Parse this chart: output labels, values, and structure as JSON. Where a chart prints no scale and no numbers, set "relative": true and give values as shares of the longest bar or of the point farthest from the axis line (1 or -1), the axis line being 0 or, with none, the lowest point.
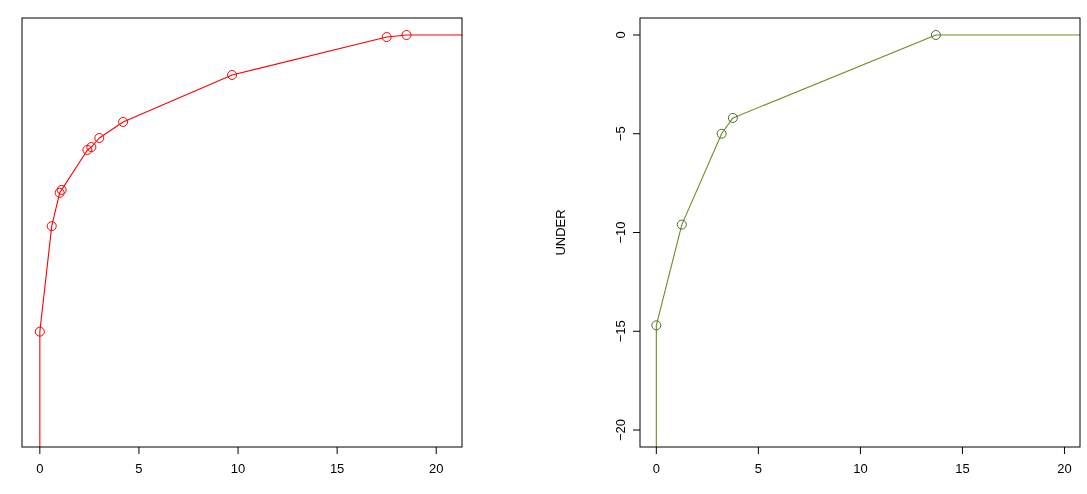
{
  "chart_data": [
    {
      "type": "line",
      "relative": true,
      "xlim": [
        -0.9,
        21.3
      ],
      "xticks": [
        0,
        5,
        10,
        15,
        20
      ],
      "series": [
        {
          "type": "line",
          "marker": "none",
          "color": "#ff0000",
          "x": [
            0,
            0,
            0.6,
            1.0,
            1.1,
            2.4,
            2.6,
            3.0,
            4.2,
            9.7,
            17.5,
            18.5,
            21.3
          ],
          "values": [
            0,
            0.28,
            0.536,
            0.617,
            0.624,
            0.721,
            0.728,
            0.75,
            0.789,
            0.903,
            0.995,
            1,
            1
          ]
        },
        {
          "type": "scatter",
          "marker": "circle",
          "color": "#ff0000",
          "x": [
            0,
            0.6,
            1.0,
            1.1,
            2.4,
            2.6,
            3.0,
            4.2,
            9.7,
            17.5,
            18.5
          ],
          "values": [
            0.28,
            0.536,
            0.617,
            0.624,
            0.721,
            0.728,
            0.75,
            0.789,
            0.903,
            0.995,
            1
          ]
        }
      ]
    },
    {
      "type": "line",
      "ylabel": "UNDER",
      "xlim": [
        -0.8,
        20.76
      ],
      "xticks": [
        0,
        5,
        10,
        15,
        20
      ],
      "ylim": [
        -20.86,
        0.86
      ],
      "yticks": [
        -20,
        -15,
        -10,
        -5,
        0
      ],
      "series": [
        {
          "type": "line",
          "marker": "none",
          "color": "#6b8e23",
          "x": [
            0,
            0,
            1.25,
            3.2,
            3.75,
            13.7,
            20.76
          ],
          "values": [
            -20.86,
            -14.7,
            -9.6,
            -5.0,
            -4.2,
            0,
            0
          ]
        },
        {
          "type": "scatter",
          "marker": "circle",
          "color": "#556b2f",
          "x": [
            0,
            1.25,
            3.2,
            3.75,
            13.7
          ],
          "values": [
            -14.7,
            -9.6,
            -5.0,
            -4.2,
            0
          ]
        }
      ]
    }
  ]
}
